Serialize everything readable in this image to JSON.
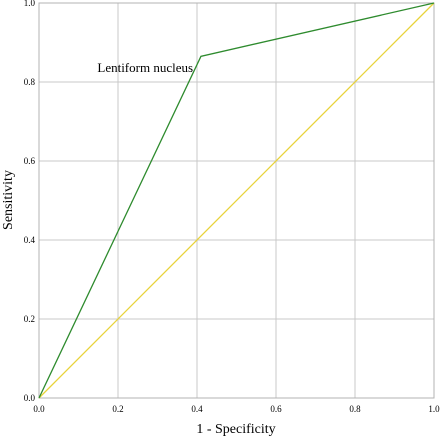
{
  "chart_data": {
    "type": "line",
    "title": "",
    "xlabel": "1 - Specificity",
    "ylabel": "Sensitivity",
    "xlim": [
      0,
      1
    ],
    "ylim": [
      0,
      1
    ],
    "x_ticks": [
      "0.0",
      "0.2",
      "0.4",
      "0.6",
      "0.8",
      "1.0"
    ],
    "y_ticks": [
      "0.0",
      "0.2",
      "0.4",
      "0.6",
      "0.8",
      "1.0"
    ],
    "grid": true,
    "series": [
      {
        "name": "Lentiform nucleus",
        "color": "#2e8b2e",
        "points": [
          [
            0.0,
            0.0
          ],
          [
            0.41,
            0.865
          ],
          [
            1.0,
            1.0
          ]
        ]
      },
      {
        "color": "#e8d33a",
        "points": [
          [
            0.0,
            0.0
          ],
          [
            1.0,
            1.0
          ]
        ]
      }
    ],
    "annotations": [
      {
        "text": "Lentiform nucleus",
        "x": 0.39,
        "y": 0.835
      }
    ]
  }
}
